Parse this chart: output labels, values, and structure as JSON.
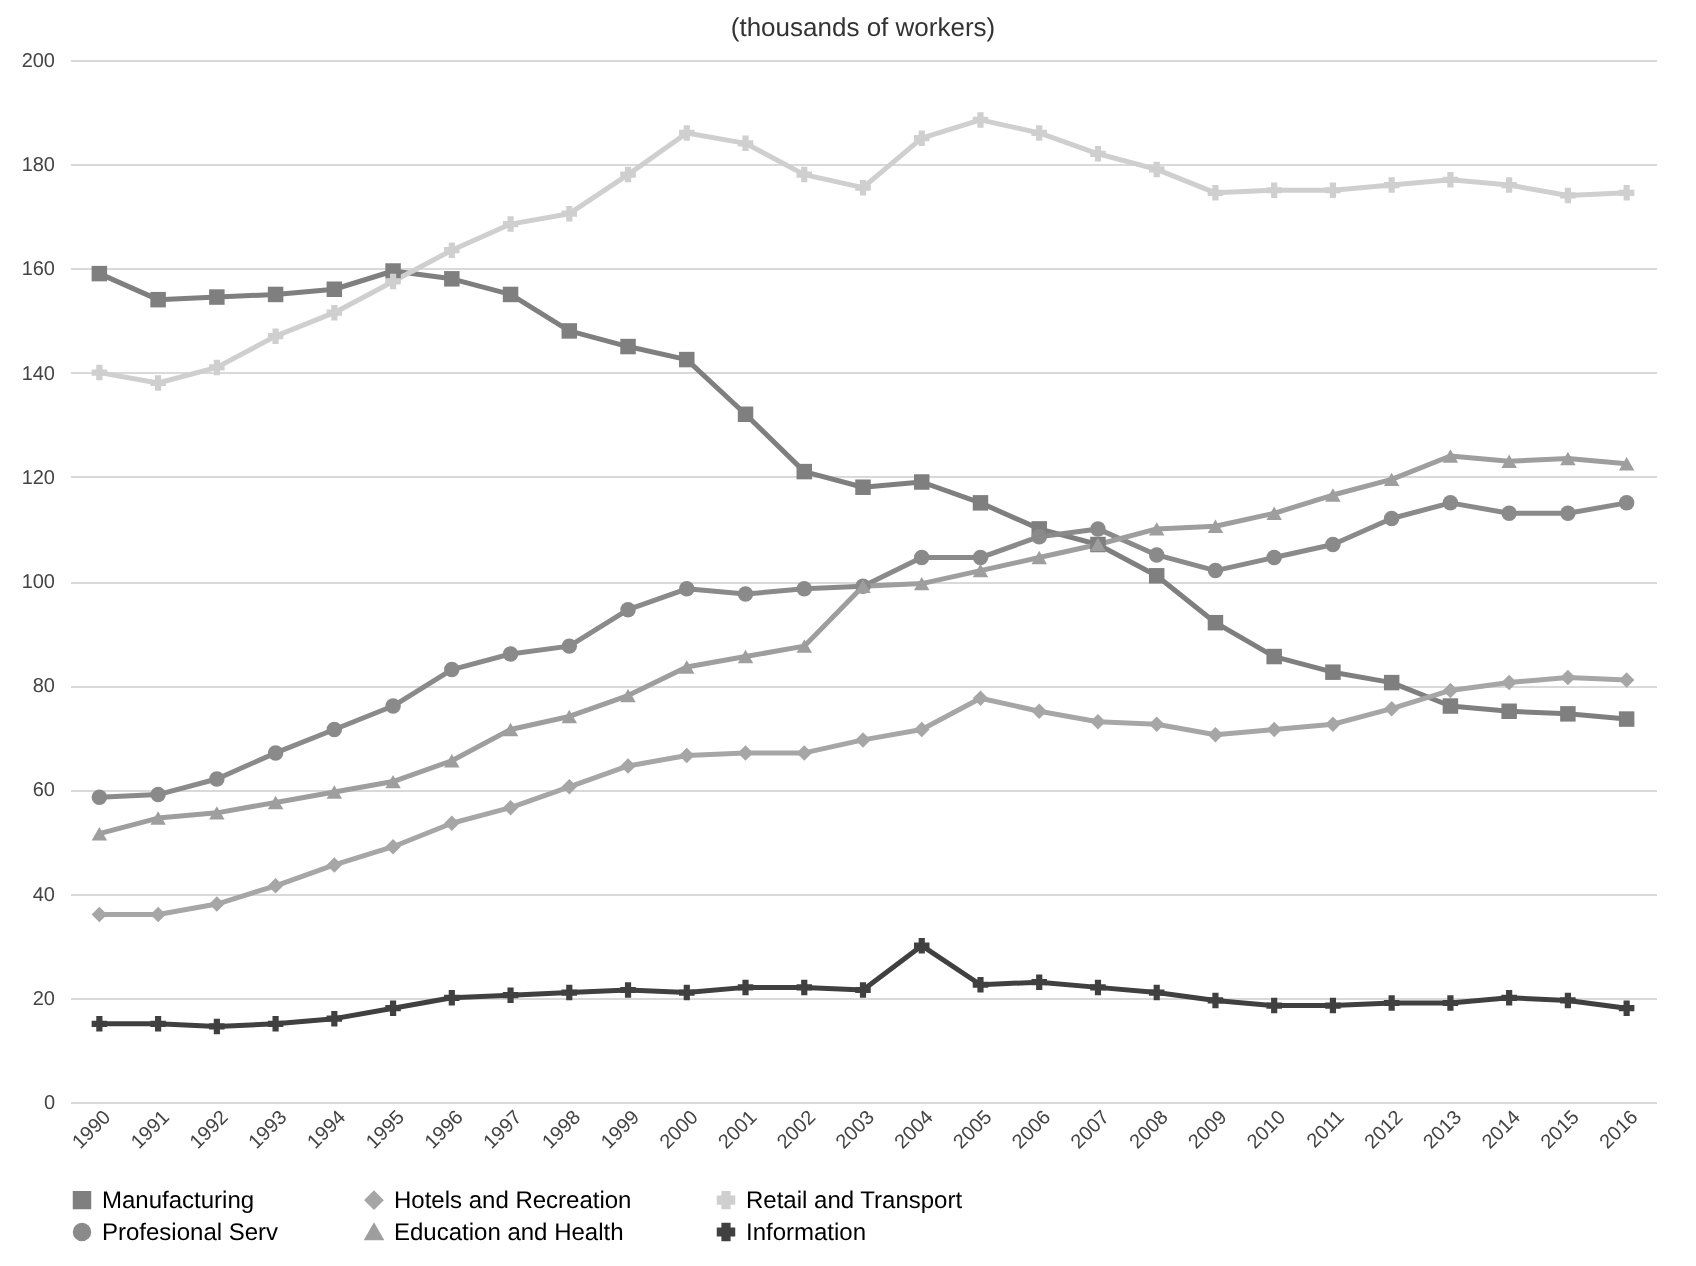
{
  "chart_data": {
    "type": "line",
    "title": "(thousands of workers)",
    "categories": [
      "1990",
      "1991",
      "1992",
      "1993",
      "1994",
      "1995",
      "1996",
      "1997",
      "1998",
      "1999",
      "2000",
      "2001",
      "2002",
      "2003",
      "2004",
      "2005",
      "2006",
      "2007",
      "2008",
      "2009",
      "2010",
      "2011",
      "2012",
      "2013",
      "2014",
      "2015",
      "2016"
    ],
    "series": [
      {
        "name": "Manufacturing",
        "color": "#7f7f7f",
        "marker": "square",
        "values": [
          159,
          154,
          154.5,
          155,
          156,
          159.5,
          158,
          155,
          148,
          145,
          142.5,
          132,
          121,
          118,
          119,
          115,
          110,
          107,
          101,
          92,
          85.5,
          82.5,
          80.5,
          76,
          75,
          74.5,
          73.5
        ]
      },
      {
        "name": "Hotels and Recreation",
        "color": "#a6a6a6",
        "marker": "diamond",
        "values": [
          36,
          36,
          38,
          41.5,
          45.5,
          49,
          53.5,
          56.5,
          60.5,
          64.5,
          66.5,
          67,
          67,
          69.5,
          71.5,
          77.5,
          75,
          73,
          72.5,
          70.5,
          71.5,
          72.5,
          75.5,
          79,
          80.5,
          81.5,
          81
        ]
      },
      {
        "name": "Retail and Transport",
        "color": "#cfcfcf",
        "marker": "cross",
        "values": [
          140,
          138,
          141,
          147,
          151.5,
          157.5,
          163.5,
          168.5,
          170.5,
          178,
          186,
          184,
          178,
          175.5,
          185,
          188.5,
          186,
          182,
          179,
          174.5,
          175,
          175,
          176,
          177,
          176,
          174,
          174.5
        ]
      },
      {
        "name": "Profesional Serv",
        "color": "#8a8a8a",
        "marker": "circle",
        "values": [
          58.5,
          59,
          62,
          67,
          71.5,
          76,
          83,
          86,
          87.5,
          94.5,
          98.5,
          97.5,
          98.5,
          99,
          104.5,
          104.5,
          108.5,
          110,
          105,
          102,
          104.5,
          107,
          112,
          115,
          113,
          113,
          115
        ]
      },
      {
        "name": "Education and Health",
        "color": "#9e9e9e",
        "marker": "triangle",
        "values": [
          51.5,
          54.5,
          55.5,
          57.5,
          59.5,
          61.5,
          65.5,
          71.5,
          74,
          78,
          83.5,
          85.5,
          87.5,
          99,
          99.5,
          102,
          104.5,
          107,
          110,
          110.5,
          113,
          116.5,
          119.5,
          124,
          123,
          123.5,
          122.5
        ]
      },
      {
        "name": "Information",
        "color": "#404040",
        "marker": "cross",
        "values": [
          15,
          15,
          14.5,
          15,
          16,
          18,
          20,
          20.5,
          21,
          21.5,
          21,
          22,
          22,
          21.5,
          30,
          22.5,
          23,
          22,
          21,
          19.5,
          18.5,
          18.5,
          19,
          19,
          20,
          19.5,
          18
        ]
      }
    ],
    "ylim": [
      0,
      200
    ],
    "yticks": [
      0,
      20,
      40,
      60,
      80,
      100,
      120,
      140,
      160,
      180,
      200
    ],
    "grid": "y",
    "legend": "bottom"
  }
}
